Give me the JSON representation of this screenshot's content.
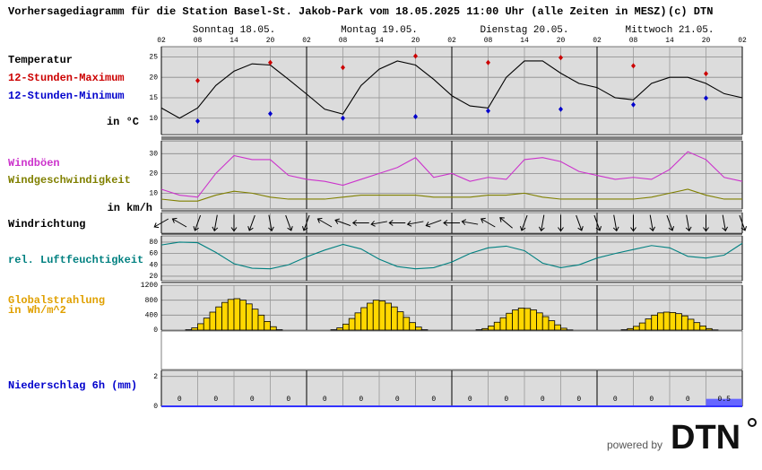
{
  "title": "Vorhersagediagramm für die Station Basel-St. Jakob-Park vom 18.05.2025 11:00 Uhr (alle Zeiten in MESZ)",
  "copyright": "(c) DTN",
  "days": [
    "Sonntag 18.05.",
    "Montag 19.05.",
    "Dienstag 20.05.",
    "Mittwoch 21.05."
  ],
  "footer": "powered by",
  "logo": "DTN",
  "xlim": [
    0,
    96
  ],
  "xticks": [
    {
      "value": 0,
      "label": "02"
    },
    {
      "value": 6,
      "label": "08"
    },
    {
      "value": 12,
      "label": "14"
    },
    {
      "value": 18,
      "label": "20"
    },
    {
      "value": 24,
      "label": "02"
    },
    {
      "value": 30,
      "label": "08"
    },
    {
      "value": 36,
      "label": "14"
    },
    {
      "value": 42,
      "label": "20"
    },
    {
      "value": 48,
      "label": "02"
    },
    {
      "value": 54,
      "label": "08"
    },
    {
      "value": 60,
      "label": "14"
    },
    {
      "value": 66,
      "label": "20"
    },
    {
      "value": 72,
      "label": "02"
    },
    {
      "value": 78,
      "label": "08"
    },
    {
      "value": 84,
      "label": "14"
    },
    {
      "value": 90,
      "label": "20"
    },
    {
      "value": 96,
      "label": "02"
    }
  ],
  "x": [
    0,
    3,
    6,
    9,
    12,
    15,
    18,
    21,
    24,
    27,
    30,
    33,
    36,
    39,
    42,
    45,
    48,
    51,
    54,
    57,
    60,
    63,
    66,
    69,
    72,
    75,
    78,
    81,
    84,
    87,
    90,
    93,
    96
  ],
  "chart_data": [
    {
      "type": "line",
      "ylabel": "in °C",
      "ylim": [
        6,
        27.5
      ],
      "yticks": [
        10,
        15,
        20,
        25
      ],
      "grid": true,
      "series": [
        {
          "name": "Temperatur",
          "color": "#000000",
          "values": [
            12.5,
            10,
            12.5,
            18,
            21.5,
            23.3,
            23,
            19.5,
            15.9,
            12.2,
            11,
            18,
            22,
            24,
            23,
            19.5,
            15.5,
            13,
            12.5,
            20,
            24,
            24,
            21,
            18.5,
            17.5,
            15,
            14.5,
            18.5,
            20,
            20,
            18.5,
            16,
            15
          ]
        },
        {
          "name": "12-Stunden-Maximum",
          "type": "scatter",
          "color": "#cc0000",
          "x": [
            6,
            18,
            30,
            42,
            54,
            66,
            78,
            90
          ],
          "values": [
            19.2,
            23.6,
            22.4,
            25.2,
            23.6,
            24.8,
            22.8,
            20.9
          ]
        },
        {
          "name": "12-Stunden-Minimum",
          "type": "scatter",
          "color": "#0000cc",
          "x": [
            6,
            18,
            30,
            42,
            54,
            66,
            78,
            90
          ],
          "values": [
            9.3,
            11.1,
            10,
            10.4,
            11.8,
            12.2,
            13.3,
            14.9
          ]
        }
      ]
    },
    {
      "type": "line",
      "ylabel": "in km/h",
      "ylim": [
        2,
        36.5
      ],
      "yticks": [
        10,
        20,
        30
      ],
      "grid": true,
      "series": [
        {
          "name": "Windböen",
          "color": "#cc33cc",
          "values": [
            12,
            9,
            8,
            20,
            29,
            27,
            27,
            19,
            17,
            16,
            14,
            17,
            20,
            23,
            28,
            18,
            20,
            16,
            18,
            17,
            27,
            28,
            26,
            21,
            19,
            17,
            18,
            17,
            22,
            31,
            27,
            18,
            16
          ]
        },
        {
          "name": "Windgeschwindigkeit",
          "color": "#808000",
          "values": [
            7,
            6,
            6,
            9,
            11,
            10,
            8,
            7,
            7,
            7,
            8,
            9,
            9,
            9,
            9,
            8,
            8,
            8,
            9,
            9,
            10,
            8,
            7,
            7,
            7,
            7,
            7,
            8,
            10,
            12,
            9,
            7,
            7
          ]
        }
      ]
    },
    {
      "type": "arrows",
      "title": "Windrichtung",
      "color": "#000000",
      "values": [
        240,
        300,
        200,
        190,
        180,
        200,
        170,
        160,
        200,
        300,
        290,
        270,
        260,
        270,
        260,
        250,
        270,
        280,
        300,
        310,
        200,
        190,
        180,
        160,
        160,
        170,
        180,
        170,
        160,
        170,
        180,
        170,
        160
      ]
    },
    {
      "type": "line",
      "ylim": [
        12,
        91
      ],
      "yticks": [
        20,
        40,
        60,
        80
      ],
      "grid": true,
      "series": [
        {
          "name": "rel. Luftfeuchtigkeit",
          "color": "#008080",
          "values": [
            75,
            80,
            79,
            62,
            42,
            34,
            33,
            40,
            54,
            66,
            76,
            68,
            50,
            37,
            33,
            35,
            45,
            60,
            70,
            73,
            65,
            43,
            35,
            40,
            52,
            60,
            67,
            74,
            70,
            55,
            52,
            57,
            78
          ]
        }
      ]
    },
    {
      "type": "bar",
      "name": "Globalstrahlung",
      "ylabel": "in Wh/m^2",
      "color": "#ffd700",
      "label_color": "#e0a000",
      "ylim": [
        0,
        1200
      ],
      "yticks": [
        0,
        400,
        800,
        1200
      ],
      "grid": true,
      "x": [
        3,
        4,
        5,
        6,
        7,
        8,
        9,
        10,
        11,
        12,
        13,
        14,
        15,
        16,
        17,
        18,
        19,
        27,
        28,
        29,
        30,
        31,
        32,
        33,
        34,
        35,
        36,
        37,
        38,
        39,
        40,
        41,
        42,
        43,
        51,
        52,
        53,
        54,
        55,
        56,
        57,
        58,
        59,
        60,
        61,
        62,
        63,
        64,
        65,
        66,
        67,
        75,
        76,
        77,
        78,
        79,
        80,
        81,
        82,
        83,
        84,
        85,
        86,
        87,
        88,
        89,
        90,
        91
      ],
      "values": [
        0,
        10,
        60,
        170,
        320,
        480,
        620,
        740,
        820,
        840,
        800,
        700,
        560,
        400,
        230,
        90,
        10,
        0,
        10,
        60,
        160,
        310,
        460,
        600,
        720,
        800,
        780,
        720,
        620,
        490,
        340,
        200,
        80,
        10,
        0,
        10,
        40,
        110,
        210,
        330,
        450,
        540,
        590,
        580,
        540,
        460,
        360,
        250,
        140,
        50,
        5,
        0,
        10,
        40,
        100,
        190,
        300,
        400,
        460,
        480,
        470,
        440,
        380,
        290,
        200,
        110,
        40,
        5
      ]
    },
    {
      "type": "precip",
      "name": "Niederschlag 6h (mm)",
      "color": "#6666ff",
      "label_color": "#0000cc",
      "ylim": [
        0,
        2.4
      ],
      "yticks": [
        0,
        2
      ],
      "grid": true,
      "x": [
        0,
        6,
        12,
        18,
        24,
        30,
        36,
        42,
        48,
        54,
        60,
        66,
        72,
        78,
        84,
        90
      ],
      "values": [
        0,
        0,
        0,
        0,
        0,
        0,
        0,
        0,
        0,
        0,
        0,
        0,
        0,
        0,
        0,
        0.5
      ]
    }
  ]
}
